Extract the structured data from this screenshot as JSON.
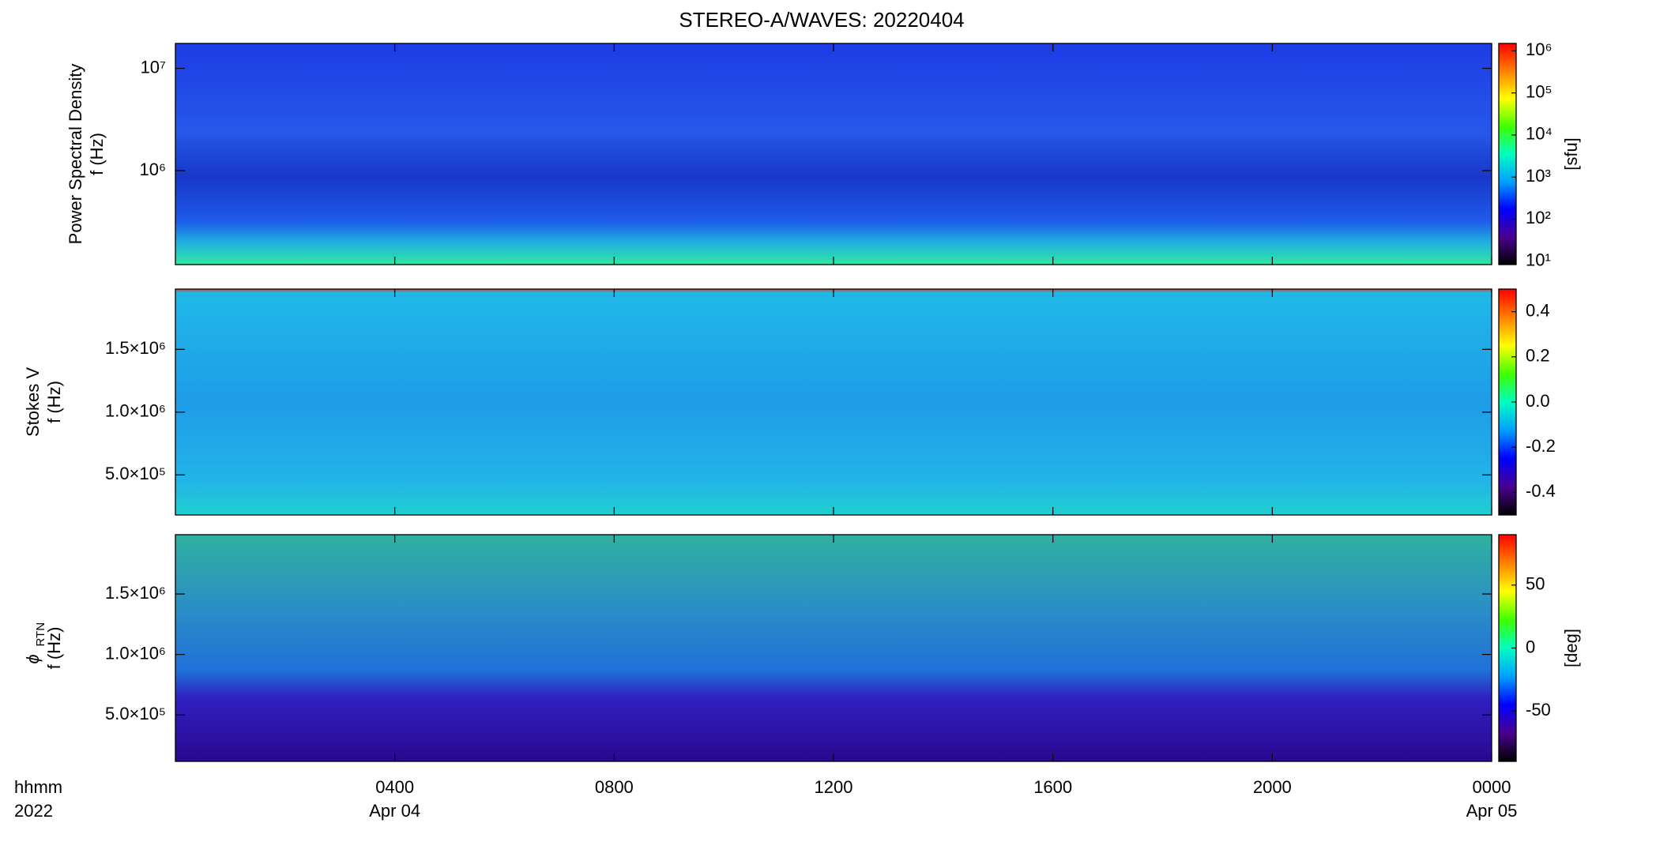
{
  "chart_data": [
    {
      "type": "heatmap",
      "title": "STEREO-A/WAVES: 20220404",
      "ylabel_lines": [
        "Power Spectral Density",
        "f (Hz)"
      ],
      "ylog": true,
      "ylim": [
        121000,
        17500000
      ],
      "yticks": [
        {
          "value": 1000000,
          "label": "10⁶"
        },
        {
          "value": 10000000,
          "label": "10⁷"
        }
      ],
      "colorbar": {
        "label": "[sfu]",
        "log": true,
        "clim": [
          8.3,
          1500000
        ],
        "ticks": [
          {
            "value": 10,
            "label": "10¹"
          },
          {
            "value": 100,
            "label": "10²"
          },
          {
            "value": 1000,
            "label": "10³"
          },
          {
            "value": 10000,
            "label": "10⁴"
          },
          {
            "value": 100000,
            "label": "10⁵"
          },
          {
            "value": 1000000,
            "label": "10⁶"
          }
        ]
      },
      "colormap": [
        "#000000",
        "#4a0090",
        "#0000ff",
        "#00a0ff",
        "#00ffc0",
        "#40ff00",
        "#ffff00",
        "#ff8000",
        "#ff0000"
      ]
    },
    {
      "type": "heatmap",
      "ylabel_lines": [
        "Stokes V",
        "f (Hz)"
      ],
      "ylog": false,
      "ylim": [
        181000,
        1980000
      ],
      "yticks": [
        {
          "value": 500000,
          "label": "5.0×10⁵"
        },
        {
          "value": 1000000,
          "label": "1.0×10⁶"
        },
        {
          "value": 1500000,
          "label": "1.5×10⁶"
        }
      ],
      "colorbar": {
        "label": "",
        "log": false,
        "clim": [
          -0.5,
          0.5
        ],
        "ticks": [
          -0.4,
          -0.2,
          {
            "value": 0,
            "label": "0.0"
          },
          0.2,
          0.4
        ]
      },
      "colormap": [
        "#000000",
        "#4a0090",
        "#0000ff",
        "#00a0ff",
        "#00ffc0",
        "#40ff00",
        "#ffff00",
        "#ff8000",
        "#ff0000"
      ]
    },
    {
      "type": "heatmap",
      "ylabel_symbol": "ϕ",
      "ylabel_subscript": "RTN",
      "ylabel_lines": [
        "f (Hz)"
      ],
      "ylog": false,
      "ylim": [
        116000,
        1990000
      ],
      "yticks": [
        {
          "value": 500000,
          "label": "5.0×10⁵"
        },
        {
          "value": 1000000,
          "label": "1.0×10⁶"
        },
        {
          "value": 1500000,
          "label": "1.5×10⁶"
        }
      ],
      "colorbar": {
        "label": "[deg]",
        "log": false,
        "clim": [
          -90,
          90
        ],
        "ticks": [
          -50,
          0,
          50
        ]
      },
      "colormap": [
        "#000000",
        "#4a0090",
        "#0000ff",
        "#00a0ff",
        "#00ffc0",
        "#40ff00",
        "#ffff00",
        "#ff8000",
        "#ff0000"
      ],
      "xlabel_lines": [
        "hhmm",
        "2022"
      ],
      "xlim": [
        0,
        24
      ],
      "xticks": [
        {
          "value": 4,
          "label": "0400",
          "date": "Apr 04"
        },
        {
          "value": 8,
          "label": "0800"
        },
        {
          "value": 12,
          "label": "1200"
        },
        {
          "value": 16,
          "label": "1600"
        },
        {
          "value": 20,
          "label": "2000"
        },
        {
          "value": 24,
          "label": "0000",
          "date": "Apr 05"
        }
      ]
    }
  ]
}
